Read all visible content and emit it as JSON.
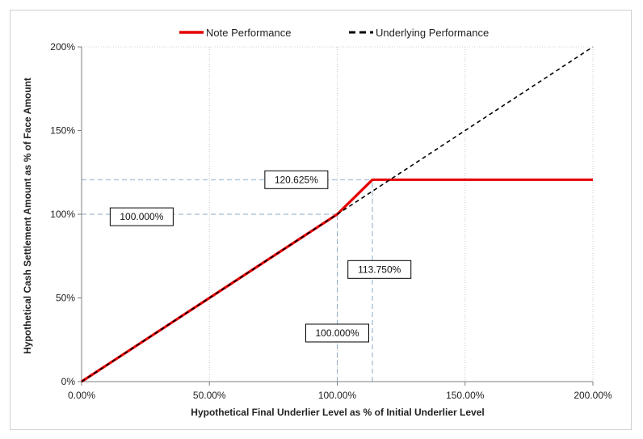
{
  "chart_data": {
    "type": "line",
    "title": "",
    "xlabel": "Hypothetical Final Underlier Level as % of Initial Underlier Level",
    "ylabel": "Hypothetical Cash Settlement Amount as % of Face Amount",
    "xlim": [
      0,
      200
    ],
    "ylim": [
      0,
      200
    ],
    "x_ticks": [
      0,
      50,
      100,
      150,
      200
    ],
    "x_tick_labels": [
      "0.00%",
      "50.00%",
      "100.00%",
      "150.00%",
      "200.00%"
    ],
    "y_ticks": [
      0,
      50,
      100,
      150,
      200
    ],
    "y_tick_labels": [
      "0%",
      "50%",
      "100%",
      "150%",
      "200%"
    ],
    "grid": "vertical dotted",
    "legend_position": "top",
    "series": [
      {
        "name": "Note Performance",
        "color": "#e60000",
        "style": "solid",
        "x": [
          0,
          100,
          113.75,
          200
        ],
        "y": [
          0,
          100,
          120.625,
          120.625
        ]
      },
      {
        "name": "Underlying Performance",
        "color": "#000000",
        "style": "dashed",
        "x": [
          0,
          200
        ],
        "y": [
          0,
          200
        ]
      }
    ],
    "reference_lines": [
      {
        "orientation": "horizontal",
        "value": 120.625,
        "from": 0,
        "to": 113.75
      },
      {
        "orientation": "horizontal",
        "value": 100,
        "from": 0,
        "to": 100
      },
      {
        "orientation": "vertical",
        "value": 100,
        "from": 0,
        "to": 100
      },
      {
        "orientation": "vertical",
        "value": 113.75,
        "from": 0,
        "to": 120.625
      }
    ],
    "annotations": [
      {
        "text": "120.625%",
        "x": 84,
        "y": 120.625
      },
      {
        "text": "100.000%",
        "x": 23.5,
        "y": 98.5
      },
      {
        "text": "113.750%",
        "x": 116.5,
        "y": 67
      },
      {
        "text": "100.000%",
        "x": 100,
        "y": 29
      }
    ]
  }
}
